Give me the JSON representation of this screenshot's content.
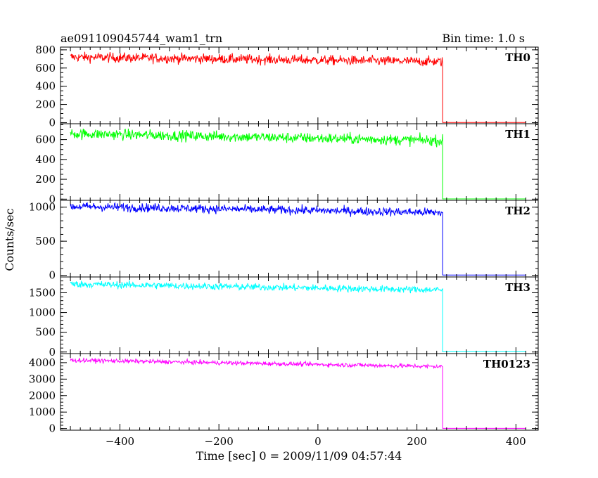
{
  "header": {
    "title": "ae091109045744_wam1_trn",
    "bin_time": "Bin time: 1.0 s"
  },
  "chart_data": {
    "type": "line",
    "xlabel": "Time [sec] 0 = 2009/11/09 04:57:44",
    "ylabel": "Counts/sec",
    "xlim": [
      -520,
      445
    ],
    "x_ticks": [
      -400,
      -200,
      0,
      200,
      400
    ],
    "x_minor_step": 20,
    "data_x_start": -500,
    "data_x_drop": 252,
    "data_x_end": 420,
    "legend": "none",
    "panels": [
      {
        "name": "TH0",
        "color": "#ff0000",
        "ylim": [
          -12,
          830
        ],
        "y_ticks": [
          0,
          200,
          400,
          600,
          800
        ],
        "y_minor_step": 50,
        "start_level": 720,
        "end_level": 670,
        "noise": 27,
        "after_level": 2
      },
      {
        "name": "TH1",
        "color": "#00ff00",
        "ylim": [
          -12,
          760
        ],
        "y_ticks": [
          0,
          200,
          400,
          600
        ],
        "y_minor_step": 50,
        "start_level": 660,
        "end_level": 590,
        "noise": 27,
        "after_level": 2
      },
      {
        "name": "TH2",
        "color": "#0000ff",
        "ylim": [
          -25,
          1100
        ],
        "y_ticks": [
          0,
          500,
          1000
        ],
        "y_minor_step": 100,
        "start_level": 1010,
        "end_level": 920,
        "noise": 32,
        "after_level": 3
      },
      {
        "name": "TH3",
        "color": "#00ffff",
        "ylim": [
          -40,
          1900
        ],
        "y_ticks": [
          0,
          500,
          1000,
          1500
        ],
        "y_minor_step": 100,
        "start_level": 1720,
        "end_level": 1570,
        "noise": 45,
        "after_level": 5
      },
      {
        "name": "TH0123",
        "color": "#ff00ff",
        "ylim": [
          -100,
          4550
        ],
        "y_ticks": [
          0,
          1000,
          2000,
          3000,
          4000
        ],
        "y_minor_step": 200,
        "start_level": 4150,
        "end_level": 3760,
        "noise": 65,
        "after_level": 10
      }
    ]
  }
}
